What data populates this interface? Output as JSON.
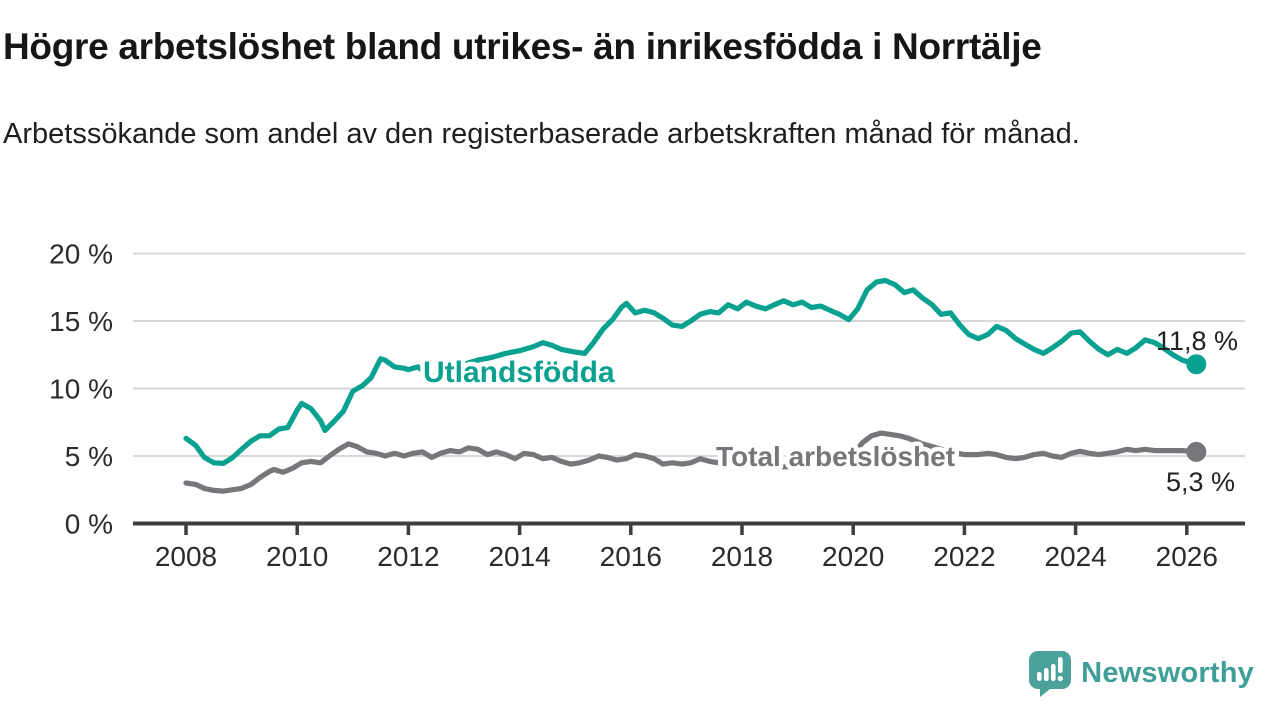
{
  "title": "Högre arbetslöshet bland utrikes- än inrikesfödda i Norrtälje",
  "subtitle": "Arbetssökande som andel av den registerbaserade arbetskraften månad för månad.",
  "branding": {
    "logo_text": "Newsworthy",
    "logo_color": "#3f9f98",
    "logo_icon": "speech-bubble-bar-chart-icon"
  },
  "chart_data": {
    "type": "line",
    "title": "Högre arbetslöshet bland utrikes- än inrikesfödda i Norrtälje",
    "subtitle": "Arbetssökande som andel av den registerbaserade arbetskraften månad för månad.",
    "grid": true,
    "x_axis": {
      "ticks": [
        2008,
        2010,
        2012,
        2014,
        2016,
        2018,
        2020,
        2022,
        2024,
        2026
      ],
      "range": [
        2007.9,
        2027.1
      ]
    },
    "y_axis": {
      "unit": "%",
      "ticks": [
        0,
        5,
        10,
        15,
        20
      ],
      "tick_labels": [
        "0 %",
        "5 %",
        "10 %",
        "15 %",
        "20 %"
      ],
      "range": [
        0,
        21.5
      ]
    },
    "colors": {
      "foreign_born": "#0aa191",
      "total": "#76767b",
      "grid": "#d8d8d8",
      "axis": "#3e3e3e",
      "value_label": "#222222"
    },
    "series": [
      {
        "name": "Utlandsfödda",
        "color": "#0aa191",
        "end_label": "11,8 %",
        "end_value": 11.8,
        "points": [
          [
            2008.0,
            6.3
          ],
          [
            2008.17,
            5.8
          ],
          [
            2008.33,
            4.9
          ],
          [
            2008.5,
            4.5
          ],
          [
            2008.67,
            4.45
          ],
          [
            2008.83,
            4.85
          ],
          [
            2009.0,
            5.5
          ],
          [
            2009.17,
            6.1
          ],
          [
            2009.33,
            6.5
          ],
          [
            2009.5,
            6.5
          ],
          [
            2009.67,
            7.0
          ],
          [
            2009.83,
            7.1
          ],
          [
            2010.0,
            8.4
          ],
          [
            2010.08,
            8.9
          ],
          [
            2010.25,
            8.5
          ],
          [
            2010.42,
            7.6
          ],
          [
            2010.5,
            6.9
          ],
          [
            2010.67,
            7.6
          ],
          [
            2010.83,
            8.3
          ],
          [
            2011.0,
            9.8
          ],
          [
            2011.17,
            10.2
          ],
          [
            2011.33,
            10.8
          ],
          [
            2011.5,
            12.2
          ],
          [
            2011.58,
            12.1
          ],
          [
            2011.75,
            11.6
          ],
          [
            2011.92,
            11.5
          ],
          [
            2012.0,
            11.4
          ],
          [
            2012.17,
            11.6
          ],
          [
            2012.33,
            11.1
          ],
          [
            2012.5,
            10.9
          ],
          [
            2012.67,
            11.2
          ],
          [
            2012.83,
            11.5
          ],
          [
            2013.0,
            11.8
          ],
          [
            2013.25,
            12.1
          ],
          [
            2013.5,
            12.3
          ],
          [
            2013.75,
            12.6
          ],
          [
            2014.0,
            12.8
          ],
          [
            2014.25,
            13.1
          ],
          [
            2014.42,
            13.4
          ],
          [
            2014.58,
            13.2
          ],
          [
            2014.75,
            12.9
          ],
          [
            2015.0,
            12.7
          ],
          [
            2015.17,
            12.6
          ],
          [
            2015.33,
            13.4
          ],
          [
            2015.5,
            14.4
          ],
          [
            2015.67,
            15.1
          ],
          [
            2015.83,
            16.0
          ],
          [
            2015.92,
            16.3
          ],
          [
            2016.08,
            15.6
          ],
          [
            2016.25,
            15.8
          ],
          [
            2016.42,
            15.6
          ],
          [
            2016.58,
            15.2
          ],
          [
            2016.75,
            14.7
          ],
          [
            2016.92,
            14.6
          ],
          [
            2017.08,
            15.0
          ],
          [
            2017.25,
            15.5
          ],
          [
            2017.42,
            15.7
          ],
          [
            2017.58,
            15.6
          ],
          [
            2017.75,
            16.2
          ],
          [
            2017.92,
            15.9
          ],
          [
            2018.08,
            16.4
          ],
          [
            2018.25,
            16.1
          ],
          [
            2018.42,
            15.9
          ],
          [
            2018.58,
            16.2
          ],
          [
            2018.75,
            16.5
          ],
          [
            2018.92,
            16.2
          ],
          [
            2019.08,
            16.4
          ],
          [
            2019.25,
            16.0
          ],
          [
            2019.42,
            16.1
          ],
          [
            2019.58,
            15.8
          ],
          [
            2019.75,
            15.5
          ],
          [
            2019.92,
            15.1
          ],
          [
            2020.08,
            15.9
          ],
          [
            2020.25,
            17.3
          ],
          [
            2020.42,
            17.9
          ],
          [
            2020.58,
            18.0
          ],
          [
            2020.75,
            17.7
          ],
          [
            2020.92,
            17.1
          ],
          [
            2021.08,
            17.3
          ],
          [
            2021.25,
            16.7
          ],
          [
            2021.42,
            16.2
          ],
          [
            2021.58,
            15.5
          ],
          [
            2021.75,
            15.6
          ],
          [
            2021.92,
            14.7
          ],
          [
            2022.08,
            14.0
          ],
          [
            2022.25,
            13.7
          ],
          [
            2022.42,
            14.0
          ],
          [
            2022.58,
            14.6
          ],
          [
            2022.75,
            14.3
          ],
          [
            2022.92,
            13.7
          ],
          [
            2023.08,
            13.3
          ],
          [
            2023.25,
            12.9
          ],
          [
            2023.42,
            12.6
          ],
          [
            2023.58,
            13.0
          ],
          [
            2023.75,
            13.5
          ],
          [
            2023.92,
            14.1
          ],
          [
            2024.08,
            14.2
          ],
          [
            2024.25,
            13.5
          ],
          [
            2024.42,
            12.9
          ],
          [
            2024.58,
            12.5
          ],
          [
            2024.75,
            12.9
          ],
          [
            2024.92,
            12.6
          ],
          [
            2025.08,
            13.0
          ],
          [
            2025.25,
            13.6
          ],
          [
            2025.42,
            13.4
          ],
          [
            2025.58,
            13.0
          ],
          [
            2025.75,
            12.5
          ],
          [
            2025.92,
            12.1
          ],
          [
            2026.08,
            11.9
          ],
          [
            2026.17,
            11.8
          ]
        ]
      },
      {
        "name": "Total arbetslöshet",
        "color": "#76767b",
        "end_label": "5,3 %",
        "end_value": 5.3,
        "points": [
          [
            2008.0,
            3.0
          ],
          [
            2008.17,
            2.9
          ],
          [
            2008.33,
            2.6
          ],
          [
            2008.5,
            2.45
          ],
          [
            2008.67,
            2.4
          ],
          [
            2008.83,
            2.5
          ],
          [
            2009.0,
            2.6
          ],
          [
            2009.17,
            2.9
          ],
          [
            2009.33,
            3.4
          ],
          [
            2009.5,
            3.85
          ],
          [
            2009.58,
            4.0
          ],
          [
            2009.75,
            3.8
          ],
          [
            2009.92,
            4.1
          ],
          [
            2010.08,
            4.5
          ],
          [
            2010.25,
            4.6
          ],
          [
            2010.42,
            4.5
          ],
          [
            2010.58,
            5.0
          ],
          [
            2010.75,
            5.5
          ],
          [
            2010.92,
            5.9
          ],
          [
            2011.08,
            5.7
          ],
          [
            2011.25,
            5.3
          ],
          [
            2011.42,
            5.2
          ],
          [
            2011.58,
            5.0
          ],
          [
            2011.75,
            5.2
          ],
          [
            2011.92,
            5.0
          ],
          [
            2012.08,
            5.2
          ],
          [
            2012.25,
            5.3
          ],
          [
            2012.42,
            4.9
          ],
          [
            2012.58,
            5.2
          ],
          [
            2012.75,
            5.4
          ],
          [
            2012.92,
            5.3
          ],
          [
            2013.08,
            5.6
          ],
          [
            2013.25,
            5.5
          ],
          [
            2013.42,
            5.1
          ],
          [
            2013.58,
            5.3
          ],
          [
            2013.75,
            5.1
          ],
          [
            2013.92,
            4.8
          ],
          [
            2014.08,
            5.2
          ],
          [
            2014.25,
            5.1
          ],
          [
            2014.42,
            4.8
          ],
          [
            2014.58,
            4.9
          ],
          [
            2014.75,
            4.6
          ],
          [
            2014.92,
            4.4
          ],
          [
            2015.08,
            4.5
          ],
          [
            2015.25,
            4.7
          ],
          [
            2015.42,
            5.0
          ],
          [
            2015.58,
            4.9
          ],
          [
            2015.75,
            4.7
          ],
          [
            2015.92,
            4.8
          ],
          [
            2016.08,
            5.1
          ],
          [
            2016.25,
            5.0
          ],
          [
            2016.42,
            4.8
          ],
          [
            2016.58,
            4.4
          ],
          [
            2016.75,
            4.5
          ],
          [
            2016.92,
            4.4
          ],
          [
            2017.08,
            4.5
          ],
          [
            2017.25,
            4.8
          ],
          [
            2017.42,
            4.6
          ],
          [
            2017.58,
            4.5
          ],
          [
            2017.75,
            4.4
          ],
          [
            2018.0,
            4.3
          ],
          [
            2018.25,
            4.4
          ],
          [
            2018.5,
            4.3
          ],
          [
            2018.75,
            4.2
          ],
          [
            2019.0,
            4.2
          ],
          [
            2019.25,
            4.3
          ],
          [
            2019.5,
            4.4
          ],
          [
            2019.75,
            4.6
          ],
          [
            2020.0,
            5.1
          ],
          [
            2020.17,
            6.0
          ],
          [
            2020.33,
            6.5
          ],
          [
            2020.5,
            6.7
          ],
          [
            2020.67,
            6.6
          ],
          [
            2020.83,
            6.5
          ],
          [
            2021.0,
            6.3
          ],
          [
            2021.25,
            5.9
          ],
          [
            2021.5,
            5.6
          ],
          [
            2021.75,
            5.3
          ],
          [
            2022.0,
            5.1
          ],
          [
            2022.25,
            5.1
          ],
          [
            2022.42,
            5.2
          ],
          [
            2022.58,
            5.1
          ],
          [
            2022.75,
            4.9
          ],
          [
            2022.92,
            4.8
          ],
          [
            2023.08,
            4.9
          ],
          [
            2023.25,
            5.1
          ],
          [
            2023.42,
            5.2
          ],
          [
            2023.58,
            5.0
          ],
          [
            2023.75,
            4.9
          ],
          [
            2023.92,
            5.2
          ],
          [
            2024.08,
            5.35
          ],
          [
            2024.25,
            5.2
          ],
          [
            2024.42,
            5.1
          ],
          [
            2024.58,
            5.2
          ],
          [
            2024.75,
            5.3
          ],
          [
            2024.92,
            5.5
          ],
          [
            2025.08,
            5.4
          ],
          [
            2025.25,
            5.5
          ],
          [
            2025.42,
            5.4
          ],
          [
            2025.58,
            5.4
          ],
          [
            2025.75,
            5.4
          ],
          [
            2025.92,
            5.4
          ],
          [
            2026.08,
            5.35
          ],
          [
            2026.17,
            5.3
          ]
        ]
      }
    ]
  }
}
